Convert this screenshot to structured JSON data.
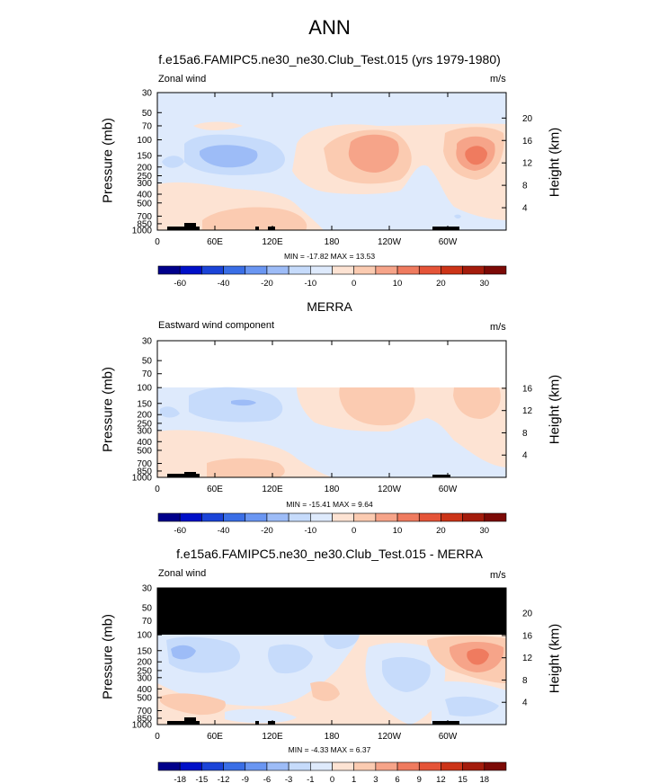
{
  "page": {
    "title": "ANN"
  },
  "colors": {
    "background": "#ffffff",
    "missing": "#000000",
    "topography": "#000000",
    "palette": [
      "#00008b",
      "#0010c8",
      "#1b44d8",
      "#3a6ee6",
      "#6a96f2",
      "#9dbcf7",
      "#c6dbfb",
      "#deeafc",
      "#fde3d3",
      "#fbcbb1",
      "#f6a489",
      "#ef7b5f",
      "#e55438",
      "#cc3418",
      "#a41c0c",
      "#7c0a06"
    ]
  },
  "panels": [
    {
      "title": "f.e15a6.FAMIPC5.ne30_ne30.Club_Test.015 (yrs 1979-1980)",
      "left_label": "Zonal wind",
      "units": "m/s",
      "ylabel": "Pressure (mb)",
      "right_axis_label": "Height (km)",
      "min_max_text": "MIN = -17.82  MAX =  13.53",
      "colorbar_labels": [
        "-60",
        "-40",
        "-20",
        "-10",
        "0",
        "10",
        "20",
        "30"
      ]
    },
    {
      "title": "MERRA",
      "left_label": "Eastward wind component",
      "units": "m/s",
      "ylabel": "Pressure (mb)",
      "right_axis_label": "Height (km)",
      "min_max_text": "MIN = -15.41  MAX =   9.64",
      "colorbar_labels": [
        "-60",
        "-40",
        "-20",
        "-10",
        "0",
        "10",
        "20",
        "30"
      ]
    },
    {
      "title": "f.e15a6.FAMIPC5.ne30_ne30.Club_Test.015 - MERRA",
      "left_label": "Zonal wind",
      "units": "m/s",
      "ylabel": "Pressure (mb)",
      "right_axis_label": "Height (km)",
      "min_max_text": "MIN =  -4.33  MAX =   6.37",
      "colorbar_labels": [
        "-18",
        "-15",
        "-12",
        "-9",
        "-6",
        "-3",
        "-1",
        "0",
        "1",
        "3",
        "6",
        "9",
        "12",
        "15",
        "18"
      ]
    }
  ],
  "chart_data": [
    {
      "type": "heatmap",
      "title": "f.e15a6.FAMIPC5.ne30_ne30.Club_Test.015 (yrs 1979-1980)",
      "subtitle": "Zonal wind",
      "units": "m/s",
      "xlabel": "",
      "ylabel": "Pressure (mb)",
      "y2label": "Height (km)",
      "x_ticks": [
        "0",
        "60E",
        "120E",
        "180",
        "120W",
        "60W"
      ],
      "y_ticks": [
        "30",
        "50",
        "70",
        "100",
        "150",
        "200",
        "250",
        "300",
        "400",
        "500",
        "700",
        "850",
        "1000"
      ],
      "y_scale": "log",
      "ylim": [
        1000,
        30
      ],
      "y2_ticks": [
        "4",
        "8",
        "12",
        "16",
        "20"
      ],
      "min": -17.82,
      "max": 13.53,
      "colorbar_levels": [
        -70,
        -60,
        -50,
        -40,
        -30,
        -20,
        -15,
        -10,
        -5,
        0,
        5,
        10,
        15,
        20,
        25,
        30,
        35
      ],
      "features": [
        {
          "kind": "max",
          "lon": 212,
          "p": 150,
          "value": 13
        },
        {
          "kind": "max",
          "lon": 328,
          "p": 150,
          "value": 12
        },
        {
          "kind": "min",
          "lon": 93,
          "p": 150,
          "value": -17
        }
      ]
    },
    {
      "type": "heatmap",
      "title": "MERRA",
      "subtitle": "Eastward wind component",
      "units": "m/s",
      "xlabel": "",
      "ylabel": "Pressure (mb)",
      "y2label": "Height (km)",
      "x_ticks": [
        "0",
        "60E",
        "120E",
        "180",
        "120W",
        "60W"
      ],
      "y_ticks": [
        "30",
        "50",
        "70",
        "100",
        "150",
        "200",
        "250",
        "300",
        "400",
        "500",
        "700",
        "850",
        "1000"
      ],
      "y_scale": "log",
      "ylim": [
        1000,
        30
      ],
      "y2_ticks": [
        "4",
        "8",
        "12",
        "16"
      ],
      "min": -15.41,
      "max": 9.64,
      "colorbar_levels": [
        -70,
        -60,
        -50,
        -40,
        -30,
        -20,
        -15,
        -10,
        -5,
        0,
        5,
        10,
        15,
        20,
        25,
        30,
        35
      ],
      "features": [
        {
          "kind": "max",
          "lon": 210,
          "p": 150,
          "value": 9
        },
        {
          "kind": "max",
          "lon": 330,
          "p": 140,
          "value": 8
        },
        {
          "kind": "min",
          "lon": 95,
          "p": 150,
          "value": -15
        }
      ]
    },
    {
      "type": "heatmap",
      "title": "f.e15a6.FAMIPC5.ne30_ne30.Club_Test.015 - MERRA",
      "subtitle": "Zonal wind",
      "units": "m/s",
      "xlabel": "",
      "ylabel": "Pressure (mb)",
      "y2label": "Height (km)",
      "x_ticks": [
        "0",
        "60E",
        "120E",
        "180",
        "120W",
        "60W"
      ],
      "y_ticks": [
        "30",
        "50",
        "70",
        "100",
        "150",
        "200",
        "250",
        "300",
        "400",
        "500",
        "700",
        "850",
        "1000"
      ],
      "y_scale": "log",
      "ylim": [
        1000,
        30
      ],
      "y2_ticks": [
        "4",
        "8",
        "12",
        "16",
        "20"
      ],
      "min": -4.33,
      "max": 6.37,
      "colorbar_levels": [
        -21,
        -18,
        -15,
        -12,
        -9,
        -6,
        -3,
        -1,
        0,
        1,
        3,
        6,
        9,
        12,
        15,
        18,
        21
      ],
      "features": [
        {
          "kind": "max",
          "lon": 328,
          "p": 170,
          "value": 6
        },
        {
          "kind": "min",
          "lon": 35,
          "p": 180,
          "value": -4
        },
        {
          "kind": "min",
          "lon": 255,
          "p": 230,
          "value": -3
        }
      ]
    }
  ]
}
